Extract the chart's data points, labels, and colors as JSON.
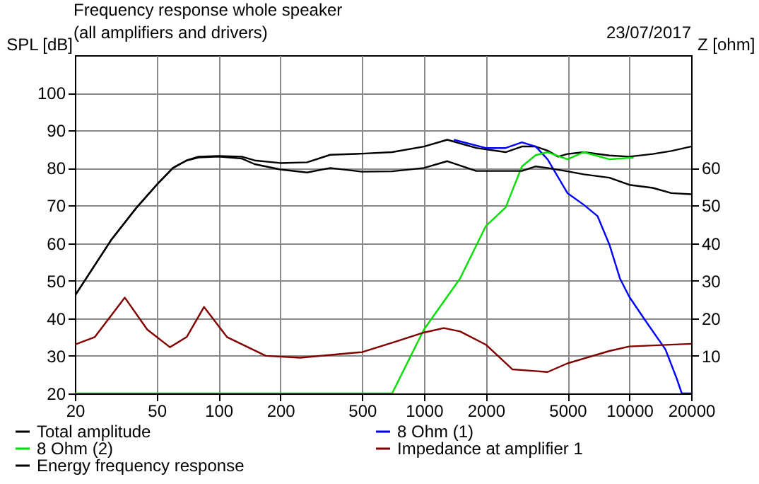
{
  "chart_data": {
    "type": "line",
    "title": "Frequency response whole speaker",
    "subtitle": "(all amplifiers and drivers)",
    "annotations": [
      "23/07/2017"
    ],
    "xlabel": null,
    "ylabel": "SPL [dB]",
    "y2label": "Z [ohm]",
    "log": "x",
    "xlim": [
      20,
      20000
    ],
    "xticks": [
      20,
      50,
      100,
      200,
      500,
      1000,
      2000,
      5000,
      10000,
      20000
    ],
    "ylim": [
      20,
      110
    ],
    "yticks": [
      20,
      30,
      40,
      50,
      60,
      70,
      80,
      90,
      100
    ],
    "y2lim": [
      0,
      90
    ],
    "y2ticks": [
      10,
      20,
      30,
      40,
      50,
      60
    ],
    "grid": true,
    "legend": "bottom",
    "marker": "none",
    "line_style": "solid",
    "series": [
      {
        "name": "Total amplitude",
        "color": "#000000",
        "x": [
          20,
          30,
          40,
          50,
          60,
          70,
          80,
          100,
          130,
          150,
          200,
          270,
          350,
          500,
          700,
          1000,
          1300,
          1800,
          2500,
          3000,
          3500,
          4000,
          4500,
          5000,
          6000,
          8000,
          10000,
          13000,
          16000,
          20000
        ],
        "values": [
          46,
          60.8,
          69.5,
          75.5,
          80,
          82,
          83,
          83.2,
          83,
          82,
          81.3,
          81.5,
          83.5,
          83.8,
          84.2,
          85.7,
          87.5,
          85.3,
          84.2,
          85.7,
          85.7,
          84.6,
          83,
          83.7,
          84.2,
          83.3,
          83,
          83.7,
          84.5,
          85.7
        ]
      },
      {
        "name": "8 Ohm (1)",
        "color": "#0000ff",
        "x": [
          1400,
          2000,
          2500,
          3000,
          3500,
          4000,
          5000,
          6000,
          7000,
          8000,
          9000,
          10000,
          12000,
          15000,
          17000,
          18000,
          20000
        ],
        "values": [
          87.5,
          85.3,
          85.3,
          86.8,
          85.7,
          82.3,
          73.3,
          70.2,
          67.2,
          59.6,
          50.6,
          45.7,
          39.3,
          31.7,
          24,
          20,
          20
        ]
      },
      {
        "name": "8 Ohm (2)",
        "color": "#00e000",
        "x": [
          20,
          700,
          1000,
          1500,
          2000,
          2500,
          3000,
          3500,
          4000,
          5000,
          6000,
          8000,
          10000,
          10500
        ],
        "values": [
          20,
          20,
          37,
          50.6,
          64.5,
          69.5,
          80.4,
          83.4,
          84.2,
          82.3,
          84.2,
          82.3,
          82.7,
          82.7
        ]
      },
      {
        "name": "Impedance at amplifier 1",
        "color": "#800000",
        "axis": "y2",
        "x": [
          20,
          25,
          35,
          45,
          58,
          70,
          85,
          110,
          170,
          250,
          500,
          700,
          1000,
          1250,
          1500,
          2000,
          2700,
          4000,
          5000,
          8000,
          10000,
          20000
        ],
        "values": [
          13,
          15,
          25.5,
          17,
          12.3,
          15,
          23,
          15,
          10,
          9.5,
          11,
          13.5,
          16.2,
          17.4,
          16.5,
          13,
          6.4,
          5.7,
          8,
          11.3,
          12.5,
          13.2
        ]
      },
      {
        "name": "Energy frequency response",
        "color": "#000000",
        "x": [
          20,
          30,
          40,
          50,
          60,
          70,
          80,
          100,
          130,
          150,
          200,
          270,
          350,
          500,
          700,
          1000,
          1300,
          1800,
          2500,
          3000,
          3500,
          4000,
          5000,
          6000,
          8000,
          10000,
          13000,
          16000,
          20000
        ],
        "values": [
          46,
          60.8,
          69.5,
          75.5,
          80,
          82,
          82.8,
          83,
          82.5,
          81,
          79.6,
          78.8,
          80,
          79,
          79.1,
          80,
          81.8,
          79.2,
          79.2,
          79.2,
          80.4,
          80,
          79.1,
          78.3,
          77.4,
          75.5,
          74.7,
          73.3,
          73
        ]
      }
    ]
  }
}
